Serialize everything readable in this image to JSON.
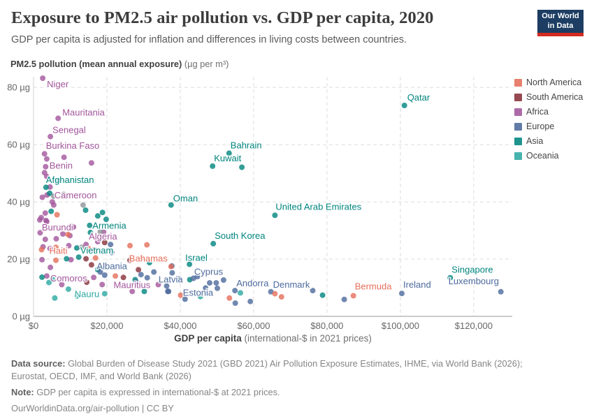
{
  "header": {
    "title": "Exposure to PM2.5 air pollution vs. GDP per capita, 2020",
    "subtitle": "GDP per capita is adjusted for inflation and differences in living costs between countries."
  },
  "logo": {
    "line1": "Our World",
    "line2": "in Data",
    "bg_color": "#1d3d63",
    "accent_color": "#d42b21"
  },
  "y_axis": {
    "label_bold": "PM2.5 pollution (mean annual exposure)",
    "label_unit": " (µg per m³)",
    "ticks": [
      {
        "v": 0,
        "label": "0 µg"
      },
      {
        "v": 20,
        "label": "20 µg"
      },
      {
        "v": 40,
        "label": "40 µg"
      },
      {
        "v": 60,
        "label": "60 µg"
      },
      {
        "v": 80,
        "label": "80 µg"
      }
    ]
  },
  "x_axis": {
    "title_bold": "GDP per capita",
    "title_rest": " (international-$ in 2021 prices)",
    "ticks": [
      {
        "v": 0,
        "label": "$0"
      },
      {
        "v": 20000,
        "label": "$20,000"
      },
      {
        "v": 40000,
        "label": "$40,000"
      },
      {
        "v": 60000,
        "label": "$60,000"
      },
      {
        "v": 80000,
        "label": "$80,000"
      },
      {
        "v": 100000,
        "label": "$100,000"
      },
      {
        "v": 120000,
        "label": "$120,000"
      }
    ]
  },
  "legend": {
    "items": [
      {
        "label": "North America",
        "color": "#E56E5A"
      },
      {
        "label": "South America",
        "color": "#883039"
      },
      {
        "label": "Africa",
        "color": "#A2559C"
      },
      {
        "label": "Europe",
        "color": "#4C6A9C"
      },
      {
        "label": "Asia",
        "color": "#00847E"
      },
      {
        "label": "Oceania",
        "color": "#2CA8A1"
      }
    ]
  },
  "chart_data": {
    "type": "scatter",
    "title": "Exposure to PM2.5 air pollution vs. GDP per capita, 2020",
    "xlabel": "GDP per capita (international-$ in 2021 prices)",
    "ylabel": "PM2.5 pollution (mean annual exposure) (µg per m³)",
    "xlim": [
      0,
      130500
    ],
    "ylim": [
      0,
      83.7
    ],
    "grid": true,
    "legend_position": "right",
    "series": [
      {
        "name": "Africa",
        "color": "#A2559C",
        "points": [
          {
            "x": 2500,
            "y": 83.2,
            "label": "Niger",
            "dx": 6,
            "dy": 13
          },
          {
            "x": 6700,
            "y": 69.2,
            "label": "Mauritania",
            "dx": 6,
            "dy": -4
          },
          {
            "x": 4600,
            "y": 62.8,
            "label": "Senegal",
            "dx": 3,
            "dy": -5
          },
          {
            "x": 3000,
            "y": 56.8,
            "label": "Burkina Faso",
            "dx": 2,
            "dy": -7
          },
          {
            "x": 3000,
            "y": 50.2,
            "label": "Benin",
            "dx": 7,
            "dy": -6
          },
          {
            "x": 5100,
            "y": 40.0,
            "label": "Cameroon",
            "dx": 3,
            "dy": -5
          },
          {
            "x": 1700,
            "y": 33.7,
            "label": "Burundi",
            "dx": 3,
            "dy": 15
          },
          {
            "x": 14300,
            "y": 25.1,
            "label": "Algeria",
            "dx": 4,
            "dy": -7
          },
          {
            "x": 3600,
            "y": 14.1,
            "label": "Comoros",
            "dx": 5,
            "dy": 8
          },
          {
            "x": 34000,
            "y": 11.1,
            "label": "Mauritius",
            "dx": -64,
            "dy": 5
          },
          {
            "x": 3600,
            "y": 55.0
          },
          {
            "x": 8300,
            "y": 55.6
          },
          {
            "x": 15800,
            "y": 53.6
          },
          {
            "x": 3300,
            "y": 52.3
          },
          {
            "x": 3600,
            "y": 48.9
          },
          {
            "x": 4500,
            "y": 45.2
          },
          {
            "x": 2400,
            "y": 41.6
          },
          {
            "x": 3700,
            "y": 42.4
          },
          {
            "x": 5500,
            "y": 38.9
          },
          {
            "x": 2100,
            "y": 34.5
          },
          {
            "x": 3400,
            "y": 33.5
          },
          {
            "x": 3200,
            "y": 36.1
          },
          {
            "x": 3600,
            "y": 33.1
          },
          {
            "x": 10900,
            "y": 31.2
          },
          {
            "x": 1800,
            "y": 29.2
          },
          {
            "x": 3200,
            "y": 26.9
          },
          {
            "x": 6200,
            "y": 27.1
          },
          {
            "x": 9900,
            "y": 28.2
          },
          {
            "x": 19100,
            "y": 29.4
          },
          {
            "x": 17500,
            "y": 26.1
          },
          {
            "x": 8000,
            "y": 28.8
          },
          {
            "x": 2600,
            "y": 24.3
          },
          {
            "x": 4500,
            "y": 23.7
          },
          {
            "x": 9600,
            "y": 24.7
          },
          {
            "x": 10200,
            "y": 19.8
          },
          {
            "x": 2300,
            "y": 19.8
          },
          {
            "x": 4600,
            "y": 17.1
          },
          {
            "x": 16400,
            "y": 13.6
          },
          {
            "x": 7700,
            "y": 11.1
          },
          {
            "x": 18700,
            "y": 11.1
          },
          {
            "x": 26900,
            "y": 8.7
          }
        ]
      },
      {
        "name": "Asia",
        "color": "#00847E",
        "points": [
          {
            "x": 3400,
            "y": 45.1,
            "label": "Afghanistan",
            "dx": 0,
            "dy": -6
          },
          {
            "x": 15300,
            "y": 31.8,
            "label": "Armenia",
            "dx": 4,
            "dy": 5
          },
          {
            "x": 11800,
            "y": 23.9,
            "label": "Vietnam",
            "dx": 5,
            "dy": 8
          },
          {
            "x": 53300,
            "y": 57.0,
            "label": "Bahrain",
            "dx": 2,
            "dy": -7
          },
          {
            "x": 48800,
            "y": 52.5,
            "label": "Kuwait",
            "dx": 2,
            "dy": -7
          },
          {
            "x": 37500,
            "y": 38.9,
            "label": "Oman",
            "dx": 3,
            "dy": -5
          },
          {
            "x": 101100,
            "y": 73.7,
            "label": "Qatar",
            "dx": 4,
            "dy": -7
          },
          {
            "x": 65800,
            "y": 35.3,
            "label": "United Arab Emirates",
            "dx": 1,
            "dy": -8
          },
          {
            "x": 49000,
            "y": 25.4,
            "label": "South Korea",
            "dx": 2,
            "dy": -7
          },
          {
            "x": 42500,
            "y": 18.2,
            "label": "Israel",
            "dx": -6,
            "dy": -5
          },
          {
            "x": 113600,
            "y": 13.5,
            "label": "Singapore",
            "dx": 2,
            "dy": -7
          },
          {
            "x": 4800,
            "y": 36.7
          },
          {
            "x": 18800,
            "y": 36.3
          },
          {
            "x": 19800,
            "y": 33.9
          },
          {
            "x": 15500,
            "y": 29.3
          },
          {
            "x": 14200,
            "y": 37.1
          },
          {
            "x": 17500,
            "y": 35.1
          },
          {
            "x": 4400,
            "y": 43.0
          },
          {
            "x": 6900,
            "y": 47.5
          },
          {
            "x": 12300,
            "y": 20.7
          },
          {
            "x": 9000,
            "y": 20.1
          },
          {
            "x": 31600,
            "y": 18.8
          },
          {
            "x": 17500,
            "y": 16.3
          },
          {
            "x": 27700,
            "y": 12.8
          },
          {
            "x": 42600,
            "y": 12.8
          },
          {
            "x": 30200,
            "y": 8.7
          },
          {
            "x": 78800,
            "y": 7.4
          },
          {
            "x": 56800,
            "y": 52.1
          },
          {
            "x": 2300,
            "y": 13.7
          }
        ]
      },
      {
        "name": "Europe",
        "color": "#4C6A9C",
        "points": [
          {
            "x": 18200,
            "y": 15.5,
            "label": "Albania",
            "dx": -5,
            "dy": -4
          },
          {
            "x": 39600,
            "y": 13.1,
            "label": "Latvia",
            "dx": -29,
            "dy": 5
          },
          {
            "x": 41300,
            "y": 6.0,
            "label": "Estonia",
            "dx": -3,
            "dy": -5
          },
          {
            "x": 43600,
            "y": 13.3,
            "label": "Cyprus",
            "dx": 1,
            "dy": -5
          },
          {
            "x": 54900,
            "y": 9.0,
            "label": "Andorra",
            "dx": 2,
            "dy": -6
          },
          {
            "x": 64700,
            "y": 8.6,
            "label": "Denmark",
            "dx": 3,
            "dy": -6
          },
          {
            "x": 100400,
            "y": 8.0,
            "label": "Ireland",
            "dx": 2,
            "dy": -8
          },
          {
            "x": 127400,
            "y": 8.6,
            "label": "Luxembourg",
            "dx": -75,
            "dy": -11
          },
          {
            "x": 21000,
            "y": 25.1
          },
          {
            "x": 21300,
            "y": 22.3
          },
          {
            "x": 29300,
            "y": 14.6
          },
          {
            "x": 32800,
            "y": 15.5
          },
          {
            "x": 36300,
            "y": 10.6
          },
          {
            "x": 36600,
            "y": 8.7
          },
          {
            "x": 37800,
            "y": 15.2
          },
          {
            "x": 37700,
            "y": 17.6
          },
          {
            "x": 36800,
            "y": 8.7
          },
          {
            "x": 44700,
            "y": 13.9
          },
          {
            "x": 46900,
            "y": 9.9
          },
          {
            "x": 48000,
            "y": 11.7
          },
          {
            "x": 49800,
            "y": 11.7
          },
          {
            "x": 50100,
            "y": 9.8
          },
          {
            "x": 51800,
            "y": 12.7
          },
          {
            "x": 55000,
            "y": 4.6
          },
          {
            "x": 59100,
            "y": 5.2
          },
          {
            "x": 76100,
            "y": 9.0
          },
          {
            "x": 84700,
            "y": 5.9
          },
          {
            "x": 19400,
            "y": 14.4
          },
          {
            "x": 28000,
            "y": 12.0
          },
          {
            "x": 31000,
            "y": 13.5
          }
        ]
      },
      {
        "name": "North America",
        "color": "#E56E5A",
        "points": [
          {
            "x": 2200,
            "y": 23.3,
            "label": "Haiti",
            "dx": 11,
            "dy": 6
          },
          {
            "x": 29500,
            "y": 20.4,
            "label": "Bahamas",
            "dx": -18,
            "dy": 5
          },
          {
            "x": 87200,
            "y": 7.2,
            "label": "Bermuda",
            "dx": 2,
            "dy": -9
          },
          {
            "x": 6400,
            "y": 35.5
          },
          {
            "x": 9400,
            "y": 28.6
          },
          {
            "x": 6100,
            "y": 24.1
          },
          {
            "x": 15000,
            "y": 23.7
          },
          {
            "x": 26300,
            "y": 24.7
          },
          {
            "x": 30900,
            "y": 25.0
          },
          {
            "x": 16900,
            "y": 20.4
          },
          {
            "x": 6100,
            "y": 19.6
          },
          {
            "x": 37500,
            "y": 17.4
          },
          {
            "x": 22300,
            "y": 14.1
          },
          {
            "x": 40100,
            "y": 7.4
          },
          {
            "x": 53400,
            "y": 6.4
          },
          {
            "x": 65800,
            "y": 7.9
          },
          {
            "x": 67600,
            "y": 6.8
          }
        ]
      },
      {
        "name": "South America",
        "color": "#883039",
        "points": [
          {
            "x": 19400,
            "y": 25.8
          },
          {
            "x": 16600,
            "y": 23.3
          },
          {
            "x": 14300,
            "y": 20.1
          },
          {
            "x": 26300,
            "y": 19.6
          },
          {
            "x": 28600,
            "y": 16.3
          },
          {
            "x": 24500,
            "y": 13.6
          },
          {
            "x": 14500,
            "y": 11.9
          },
          {
            "x": 15800,
            "y": 18.0
          }
        ]
      },
      {
        "name": "Oceania",
        "color": "#2CA8A1",
        "points": [
          {
            "x": 19400,
            "y": 7.9,
            "label": "Nauru",
            "dx": -43,
            "dy": 5
          },
          {
            "x": 5300,
            "y": 12.8
          },
          {
            "x": 5800,
            "y": 6.4
          },
          {
            "x": 11800,
            "y": 7.1
          },
          {
            "x": 56400,
            "y": 8.2
          },
          {
            "x": 45500,
            "y": 6.9
          },
          {
            "x": 4200,
            "y": 11.8
          },
          {
            "x": 9500,
            "y": 9.5
          }
        ]
      },
      {
        "name": "Other",
        "color": "#8F9398",
        "points": [
          {
            "x": 8200,
            "y": 42.6
          },
          {
            "x": 13500,
            "y": 38.9
          },
          {
            "x": 18200,
            "y": 29.6
          },
          {
            "x": 13100,
            "y": 24.1
          },
          {
            "x": 5500,
            "y": 42.0
          }
        ]
      }
    ]
  },
  "footer": {
    "data_source_prefix": "Data source:",
    "data_source_text": " Global Burden of Disease Study 2021 (GBD 2021) Air Pollution Exposure Estimates, IHME, via World Bank (2026); Eurostat, OECD, IMF, and World Bank (2026)",
    "note_prefix": "Note:",
    "note_text": " GDP per capita is expressed in international-$ at 2021 prices.",
    "citation_link": "OurWorldinData.org/air-pollution",
    "citation_suffix": " | CC BY"
  }
}
